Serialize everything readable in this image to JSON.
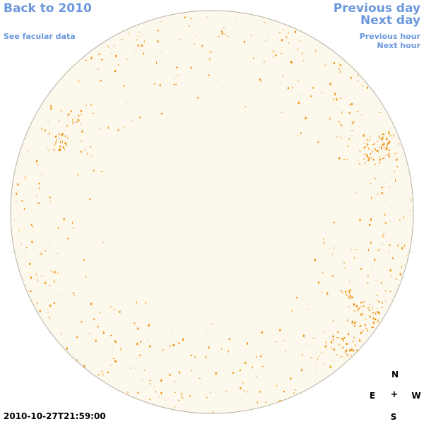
{
  "nav": {
    "back_label": "Back to 2010",
    "facular_label": "See facular data",
    "previous_day_label": "Previous day",
    "next_day_label": "Next day",
    "previous_hour_label": "Previous hour",
    "next_hour_label": "Next hour"
  },
  "compass": {
    "north": "N",
    "south": "S",
    "east": "E",
    "west": "W",
    "center": "+"
  },
  "timestamp": "2010-10-27T21:59:00",
  "colors": {
    "disk_fill": "#fdf8ec",
    "disk_stroke": "#b5b0a6",
    "facula": "#ee8a00",
    "link": "#6b97dd"
  }
}
